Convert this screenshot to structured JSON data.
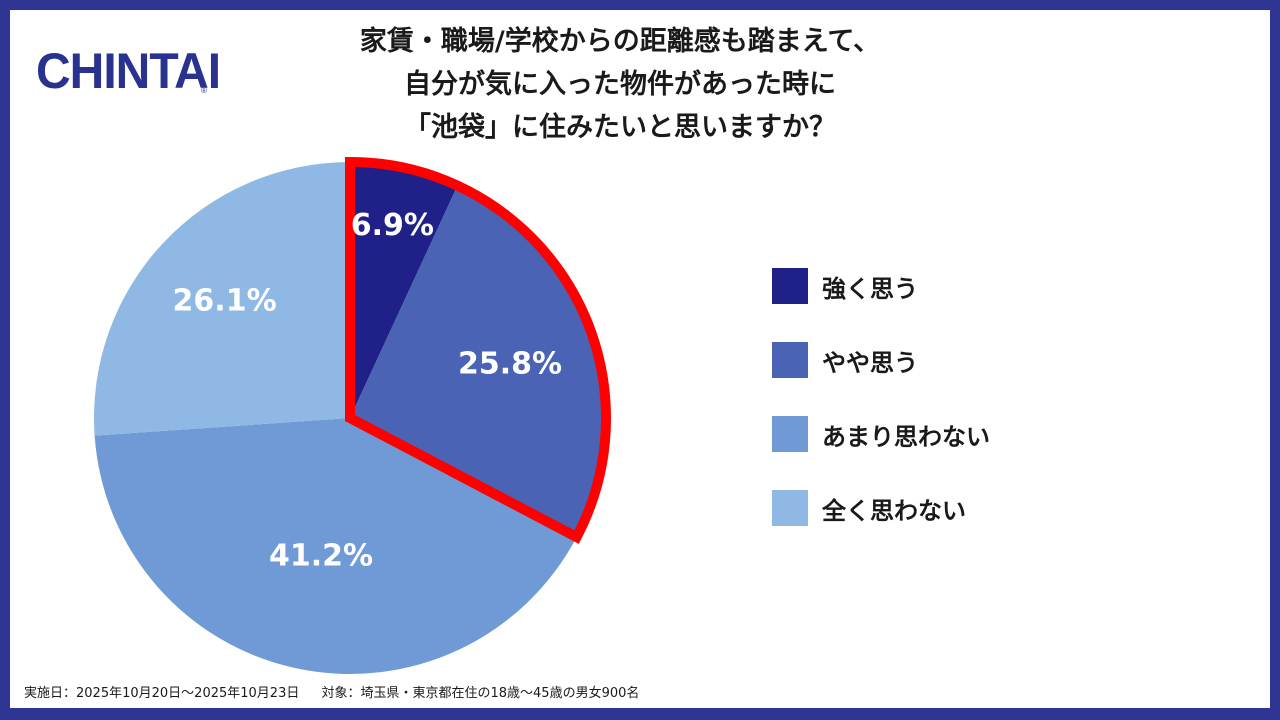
{
  "logo": {
    "text": "CHINTAI",
    "registered": "®"
  },
  "title_lines": [
    "家賃・職場/学校からの距離感も踏まえて、",
    "自分が気に入った物件があった時に",
    "「池袋」に住みたいと思いますか？"
  ],
  "chart_data": {
    "type": "pie",
    "title": "家賃・職場/学校からの距離感も踏まえて、自分が気に入った物件があった時に「池袋」に住みたいと思いますか？",
    "slices": [
      {
        "label": "強く思う",
        "value": 6.9,
        "display": "6.9%",
        "color": "#1f2189"
      },
      {
        "label": "やや思う",
        "value": 25.8,
        "display": "25.8%",
        "color": "#4a63b4"
      },
      {
        "label": "あまり思わない",
        "value": 41.2,
        "display": "41.2%",
        "color": "#6f9ad5"
      },
      {
        "label": "全く思わない",
        "value": 26.1,
        "display": "26.1%",
        "color": "#8fb8e4"
      }
    ],
    "start_angle": "12 o'clock, clockwise",
    "highlight": {
      "slices": [
        "強く思う",
        "やや思う"
      ],
      "color": "#ff0000"
    },
    "legend_position": "right",
    "label_color": "#ffffff"
  },
  "footer": {
    "period": "実施日：2025年10月20日～2025年10月23日",
    "target": "対象：埼玉県・東京都在住の18歳～45歳の男女900名"
  }
}
